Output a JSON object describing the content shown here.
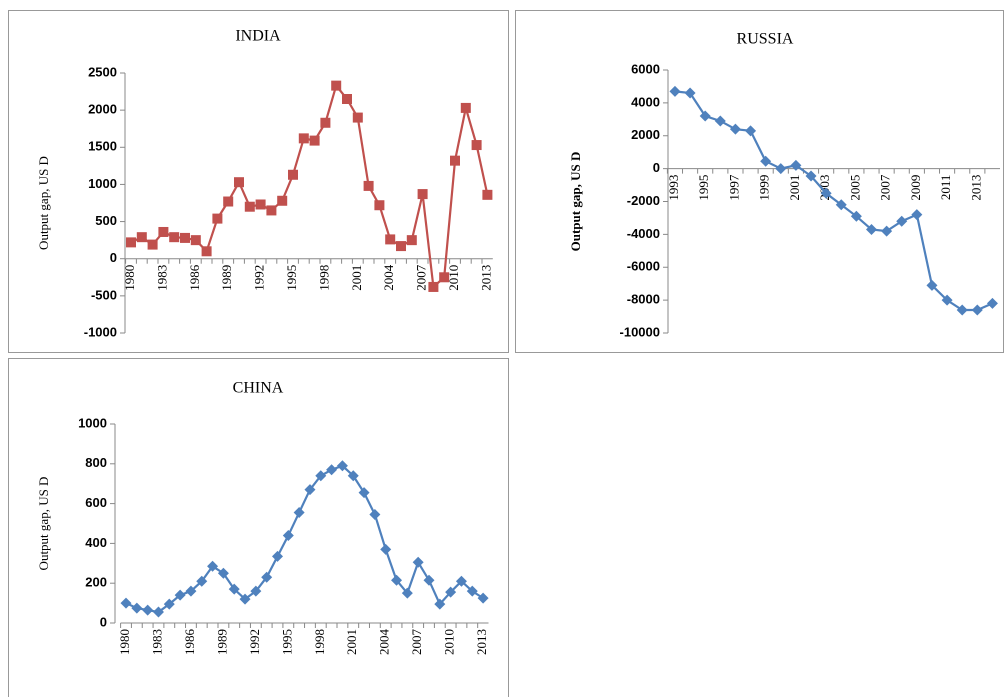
{
  "chart_data": [
    {
      "type": "line",
      "title": "INDIA",
      "y_label": "Output gap, US D",
      "marker": "square",
      "color": "#c0504d",
      "categories": [
        "1980",
        null,
        null,
        "1983",
        null,
        null,
        "1986",
        null,
        null,
        "1989",
        null,
        null,
        "1992",
        null,
        null,
        "1995",
        null,
        null,
        "1998",
        null,
        null,
        "2001",
        null,
        null,
        "2004",
        null,
        null,
        "2007",
        null,
        null,
        "2010",
        null,
        null,
        "2013"
      ],
      "values": [
        220,
        290,
        190,
        360,
        290,
        280,
        250,
        100,
        540,
        770,
        1030,
        700,
        730,
        650,
        780,
        1130,
        1620,
        1590,
        1830,
        2330,
        2150,
        1900,
        980,
        720,
        260,
        170,
        250,
        870,
        -380,
        -250,
        1320,
        2030,
        1530,
        860
      ],
      "ylim": [
        -1000,
        2500
      ],
      "yticks": [
        -1000,
        -500,
        0,
        500,
        1000,
        1500,
        2000,
        2500
      ]
    },
    {
      "type": "line",
      "title": "RUSSIA",
      "y_label": "Output gap, US D",
      "marker": "diamond",
      "color": "#4f81bd",
      "categories": [
        "1993",
        null,
        "1995",
        null,
        "1997",
        null,
        "1999",
        null,
        "2001",
        null,
        "2003",
        null,
        "2005",
        null,
        "2007",
        null,
        "2009",
        null,
        "2011",
        null,
        "2013",
        null
      ],
      "values": [
        4700,
        4600,
        3200,
        2900,
        2400,
        2300,
        450,
        0,
        200,
        -450,
        -1500,
        -2200,
        -2900,
        -3700,
        -3800,
        -3200,
        -2800,
        -7100,
        -8000,
        -8600,
        -8600,
        -8200
      ],
      "ylim": [
        -10000,
        6000
      ],
      "yticks": [
        -10000,
        -8000,
        -6000,
        -4000,
        -2000,
        0,
        2000,
        4000,
        6000
      ]
    },
    {
      "type": "line",
      "title": "CHINA",
      "y_label": "Output gap, US D",
      "marker": "diamond",
      "color": "#4f81bd",
      "categories": [
        "1980",
        null,
        null,
        "1983",
        null,
        null,
        "1986",
        null,
        null,
        "1989",
        null,
        null,
        "1992",
        null,
        null,
        "1995",
        null,
        null,
        "1998",
        null,
        null,
        "2001",
        null,
        null,
        "2004",
        null,
        null,
        "2007",
        null,
        null,
        "2010",
        null,
        null,
        "2013"
      ],
      "values": [
        100,
        75,
        65,
        55,
        95,
        140,
        160,
        210,
        285,
        250,
        170,
        120,
        160,
        230,
        335,
        440,
        555,
        670,
        740,
        770,
        790,
        740,
        655,
        545,
        370,
        215,
        150,
        305,
        215,
        95,
        155,
        210,
        160,
        125
      ],
      "ylim": [
        0,
        1000
      ],
      "yticks": [
        0,
        200,
        400,
        600,
        800,
        1000
      ]
    }
  ]
}
